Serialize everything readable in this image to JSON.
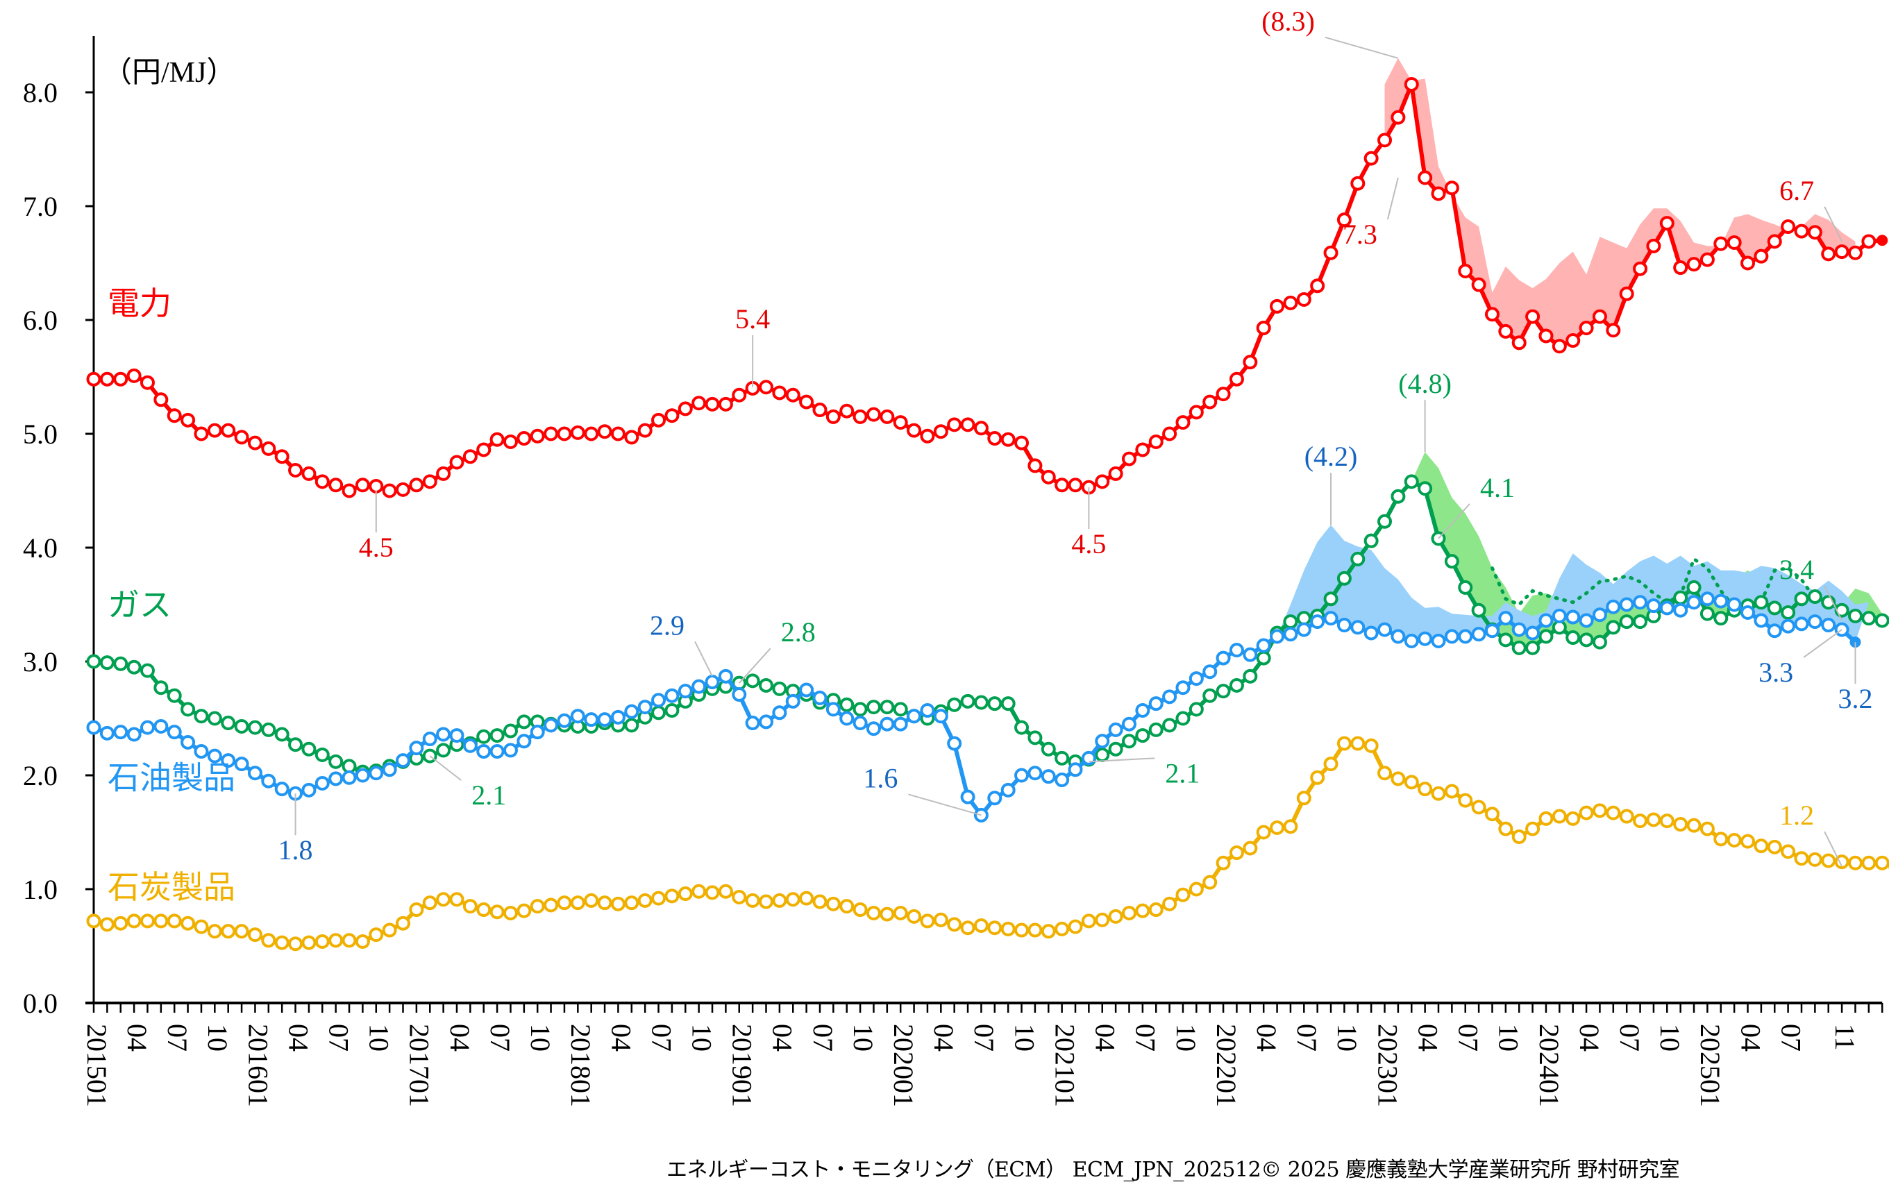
{
  "chart_data": {
    "type": "line",
    "title": "",
    "unit_label": "（円/MJ）",
    "ylabel": "円/MJ",
    "xlabel": "",
    "ylim": [
      0,
      8.5
    ],
    "yticks": [
      0.0,
      1.0,
      2.0,
      3.0,
      4.0,
      5.0,
      6.0,
      7.0,
      8.0
    ],
    "ytick_labels": [
      "0.0",
      "1.0",
      "2.0",
      "3.0",
      "4.0",
      "5.0",
      "6.0",
      "7.0",
      "8.0"
    ],
    "x_start": "201501",
    "x_end": "202512",
    "x_tick_labels": [
      {
        "index": 0,
        "label": "201501"
      },
      {
        "index": 3,
        "label": "04"
      },
      {
        "index": 6,
        "label": "07"
      },
      {
        "index": 9,
        "label": "10"
      },
      {
        "index": 12,
        "label": "201601"
      },
      {
        "index": 15,
        "label": "04"
      },
      {
        "index": 18,
        "label": "07"
      },
      {
        "index": 21,
        "label": "10"
      },
      {
        "index": 24,
        "label": "201701"
      },
      {
        "index": 27,
        "label": "04"
      },
      {
        "index": 30,
        "label": "07"
      },
      {
        "index": 33,
        "label": "10"
      },
      {
        "index": 36,
        "label": "201801"
      },
      {
        "index": 39,
        "label": "04"
      },
      {
        "index": 42,
        "label": "07"
      },
      {
        "index": 45,
        "label": "10"
      },
      {
        "index": 48,
        "label": "201901"
      },
      {
        "index": 51,
        "label": "04"
      },
      {
        "index": 54,
        "label": "07"
      },
      {
        "index": 57,
        "label": "10"
      },
      {
        "index": 60,
        "label": "202001"
      },
      {
        "index": 63,
        "label": "04"
      },
      {
        "index": 66,
        "label": "07"
      },
      {
        "index": 69,
        "label": "10"
      },
      {
        "index": 72,
        "label": "202101"
      },
      {
        "index": 75,
        "label": "04"
      },
      {
        "index": 78,
        "label": "07"
      },
      {
        "index": 81,
        "label": "10"
      },
      {
        "index": 84,
        "label": "202201"
      },
      {
        "index": 87,
        "label": "04"
      },
      {
        "index": 90,
        "label": "07"
      },
      {
        "index": 93,
        "label": "10"
      },
      {
        "index": 96,
        "label": "202301"
      },
      {
        "index": 99,
        "label": "04"
      },
      {
        "index": 102,
        "label": "07"
      },
      {
        "index": 105,
        "label": "10"
      },
      {
        "index": 108,
        "label": "202401"
      },
      {
        "index": 111,
        "label": "04"
      },
      {
        "index": 114,
        "label": "07"
      },
      {
        "index": 117,
        "label": "10"
      },
      {
        "index": 120,
        "label": "202501"
      },
      {
        "index": 123,
        "label": "04"
      },
      {
        "index": 126,
        "label": "07"
      },
      {
        "index": 130,
        "label": "11"
      }
    ],
    "grid": false,
    "legend": "inline-labels-left",
    "series": [
      {
        "name": "電力",
        "color": "#ff0000",
        "band_color": "#ffb3b3",
        "label_anchor": {
          "index": 1,
          "value": 6.05
        },
        "values": [
          5.48,
          5.48,
          5.48,
          5.51,
          5.45,
          5.3,
          5.16,
          5.12,
          5.0,
          5.03,
          5.03,
          4.97,
          4.92,
          4.87,
          4.8,
          4.68,
          4.65,
          4.58,
          4.55,
          4.5,
          4.55,
          4.54,
          4.5,
          4.51,
          4.55,
          4.58,
          4.65,
          4.75,
          4.8,
          4.86,
          4.95,
          4.93,
          4.96,
          4.98,
          5.0,
          5.0,
          5.01,
          5.0,
          5.02,
          5.0,
          4.97,
          5.03,
          5.12,
          5.16,
          5.22,
          5.27,
          5.26,
          5.26,
          5.34,
          5.4,
          5.41,
          5.36,
          5.34,
          5.28,
          5.21,
          5.15,
          5.2,
          5.15,
          5.17,
          5.15,
          5.1,
          5.03,
          4.98,
          5.02,
          5.08,
          5.08,
          5.05,
          4.96,
          4.95,
          4.92,
          4.72,
          4.62,
          4.55,
          4.55,
          4.53,
          4.58,
          4.65,
          4.78,
          4.86,
          4.93,
          5.0,
          5.1,
          5.19,
          5.28,
          5.35,
          5.48,
          5.63,
          5.93,
          6.12,
          6.15,
          6.18,
          6.3,
          6.59,
          6.88,
          7.2,
          7.42,
          7.58,
          7.78,
          8.07,
          7.25,
          7.11,
          7.16,
          6.43,
          6.31,
          6.05,
          5.9,
          5.8,
          6.03,
          5.86,
          5.77,
          5.82,
          5.93,
          6.03,
          5.91,
          6.23,
          6.45,
          6.65,
          6.85,
          6.46,
          6.49,
          6.53,
          6.67,
          6.68,
          6.5,
          6.56,
          6.69,
          6.82,
          6.78,
          6.77,
          6.58,
          6.6,
          6.59,
          6.69,
          6.7
        ],
        "upper_band": {
          "start_index": 96,
          "values": [
            8.07,
            8.3,
            8.1,
            8.12,
            7.35,
            7.1,
            6.9,
            6.82,
            6.24,
            6.47,
            6.35,
            6.28,
            6.36,
            6.5,
            6.6,
            6.4,
            6.73,
            6.68,
            6.63,
            6.84,
            6.98,
            6.98,
            6.87,
            6.68,
            6.65,
            6.65,
            6.9,
            6.93,
            6.88,
            6.84,
            6.79,
            6.82,
            6.93,
            6.88,
            6.77,
            6.69
          ]
        }
      },
      {
        "name": "ガス",
        "color": "#00a050",
        "band_color": "#8ee68a",
        "label_anchor": {
          "index": 1,
          "value": 3.4
        },
        "values": [
          3.0,
          2.99,
          2.98,
          2.95,
          2.92,
          2.77,
          2.7,
          2.58,
          2.52,
          2.5,
          2.46,
          2.43,
          2.42,
          2.4,
          2.36,
          2.27,
          2.23,
          2.18,
          2.12,
          2.08,
          2.03,
          2.04,
          2.08,
          2.12,
          2.15,
          2.17,
          2.22,
          2.27,
          2.28,
          2.34,
          2.35,
          2.39,
          2.47,
          2.47,
          2.45,
          2.44,
          2.43,
          2.43,
          2.46,
          2.44,
          2.44,
          2.51,
          2.55,
          2.57,
          2.65,
          2.71,
          2.76,
          2.78,
          2.81,
          2.83,
          2.79,
          2.76,
          2.74,
          2.71,
          2.64,
          2.66,
          2.62,
          2.58,
          2.6,
          2.6,
          2.58,
          2.52,
          2.5,
          2.56,
          2.62,
          2.65,
          2.64,
          2.63,
          2.63,
          2.42,
          2.33,
          2.23,
          2.15,
          2.12,
          2.14,
          2.18,
          2.23,
          2.3,
          2.35,
          2.4,
          2.44,
          2.5,
          2.58,
          2.7,
          2.74,
          2.79,
          2.87,
          3.03,
          3.25,
          3.35,
          3.38,
          3.4,
          3.55,
          3.73,
          3.9,
          4.06,
          4.23,
          4.45,
          4.58,
          4.52,
          4.08,
          3.88,
          3.65,
          3.45,
          3.28,
          3.19,
          3.12,
          3.12,
          3.22,
          3.3,
          3.21,
          3.19,
          3.17,
          3.3,
          3.35,
          3.35,
          3.4,
          3.49,
          3.56,
          3.65,
          3.42,
          3.38,
          3.45,
          3.49,
          3.52,
          3.47,
          3.43,
          3.55,
          3.57,
          3.52,
          3.45,
          3.4,
          3.38,
          3.36,
          3.37
        ],
        "upper_band": {
          "start_index": 98,
          "values": [
            4.58,
            4.84,
            4.7,
            4.44,
            4.3,
            4.1,
            3.82,
            3.65,
            3.42,
            3.58,
            3.6,
            3.55,
            3.57,
            3.57,
            3.61,
            3.68,
            3.72,
            3.71,
            3.65,
            3.58,
            3.76,
            3.74,
            3.6,
            3.73,
            3.72,
            3.8,
            3.72,
            3.6,
            3.58,
            3.52,
            3.52,
            3.45,
            3.5,
            3.64,
            3.6,
            3.42,
            3.37
          ]
        },
        "dotted_segment": {
          "start_index": 104,
          "values": [
            3.82,
            3.55,
            3.5,
            3.62,
            3.58,
            3.55,
            3.52,
            3.6,
            3.7,
            3.72,
            3.75,
            3.7,
            3.6,
            3.52,
            3.58,
            3.9,
            3.82,
            3.62,
            3.48,
            3.45,
            3.52,
            3.8,
            3.82,
            3.72,
            3.55,
            3.5
          ]
        }
      },
      {
        "name": "石油製品",
        "color": "#2196f3",
        "band_color": "#99d1fb",
        "label_anchor": {
          "index": 1,
          "value": 1.88
        },
        "values": [
          2.42,
          2.37,
          2.38,
          2.36,
          2.42,
          2.43,
          2.38,
          2.29,
          2.21,
          2.17,
          2.13,
          2.1,
          2.02,
          1.95,
          1.88,
          1.84,
          1.87,
          1.93,
          1.97,
          1.98,
          2.0,
          2.02,
          2.05,
          2.13,
          2.24,
          2.32,
          2.36,
          2.35,
          2.26,
          2.21,
          2.21,
          2.22,
          2.3,
          2.38,
          2.44,
          2.48,
          2.52,
          2.49,
          2.49,
          2.51,
          2.56,
          2.6,
          2.66,
          2.7,
          2.74,
          2.78,
          2.82,
          2.87,
          2.71,
          2.46,
          2.47,
          2.55,
          2.65,
          2.75,
          2.68,
          2.58,
          2.5,
          2.46,
          2.41,
          2.45,
          2.45,
          2.52,
          2.57,
          2.52,
          2.28,
          1.81,
          1.65,
          1.8,
          1.87,
          2.0,
          2.02,
          1.99,
          1.96,
          2.05,
          2.15,
          2.3,
          2.4,
          2.45,
          2.57,
          2.63,
          2.69,
          2.77,
          2.85,
          2.91,
          3.03,
          3.1,
          3.06,
          3.14,
          3.22,
          3.24,
          3.28,
          3.35,
          3.38,
          3.32,
          3.3,
          3.25,
          3.28,
          3.22,
          3.18,
          3.2,
          3.18,
          3.22,
          3.22,
          3.24,
          3.27,
          3.38,
          3.28,
          3.25,
          3.36,
          3.4,
          3.39,
          3.36,
          3.41,
          3.48,
          3.5,
          3.52,
          3.49,
          3.47,
          3.45,
          3.52,
          3.55,
          3.53,
          3.5,
          3.43,
          3.36,
          3.27,
          3.31,
          3.33,
          3.35,
          3.32,
          3.28,
          3.17
        ],
        "upper_band": {
          "start_index": 84,
          "values": [
            3.03,
            3.1,
            3.06,
            3.14,
            3.22,
            3.5,
            3.8,
            4.05,
            4.2,
            4.06,
            4.01,
            3.98,
            3.82,
            3.72,
            3.56,
            3.47,
            3.48,
            3.42,
            3.41,
            3.4,
            3.4,
            3.52,
            3.45,
            3.4,
            3.44,
            3.73,
            3.95,
            3.85,
            3.78,
            3.68,
            3.79,
            3.88,
            3.93,
            3.86,
            3.93,
            3.84,
            3.88,
            3.8,
            3.8,
            3.78,
            3.84,
            3.82,
            3.76,
            3.68,
            3.62,
            3.71,
            3.62,
            3.5,
            3.52,
            3.52,
            3.5,
            3.5
          ]
        }
      },
      {
        "name": "石炭製品",
        "color": "#f0b000",
        "band_color": "",
        "label_anchor": {
          "index": 1,
          "value": 0.92
        },
        "values": [
          0.72,
          0.69,
          0.7,
          0.72,
          0.72,
          0.72,
          0.72,
          0.7,
          0.67,
          0.63,
          0.63,
          0.63,
          0.6,
          0.55,
          0.53,
          0.52,
          0.53,
          0.54,
          0.55,
          0.55,
          0.54,
          0.6,
          0.64,
          0.7,
          0.82,
          0.88,
          0.91,
          0.91,
          0.85,
          0.82,
          0.8,
          0.79,
          0.81,
          0.85,
          0.86,
          0.88,
          0.88,
          0.9,
          0.88,
          0.87,
          0.88,
          0.9,
          0.92,
          0.94,
          0.96,
          0.98,
          0.97,
          0.98,
          0.93,
          0.9,
          0.89,
          0.9,
          0.91,
          0.92,
          0.89,
          0.87,
          0.85,
          0.82,
          0.79,
          0.78,
          0.79,
          0.76,
          0.72,
          0.73,
          0.69,
          0.66,
          0.68,
          0.66,
          0.65,
          0.64,
          0.64,
          0.63,
          0.65,
          0.67,
          0.72,
          0.73,
          0.76,
          0.79,
          0.81,
          0.82,
          0.87,
          0.95,
          1.0,
          1.06,
          1.23,
          1.32,
          1.36,
          1.5,
          1.54,
          1.55,
          1.8,
          1.98,
          2.1,
          2.28,
          2.28,
          2.26,
          2.02,
          1.97,
          1.94,
          1.88,
          1.84,
          1.86,
          1.78,
          1.72,
          1.66,
          1.53,
          1.46,
          1.53,
          1.62,
          1.64,
          1.62,
          1.67,
          1.69,
          1.67,
          1.64,
          1.6,
          1.61,
          1.6,
          1.57,
          1.56,
          1.53,
          1.44,
          1.43,
          1.42,
          1.38,
          1.37,
          1.33,
          1.27,
          1.26,
          1.25,
          1.24,
          1.23,
          1.23,
          1.23,
          1.2,
          1.21
        ]
      }
    ],
    "annotations": [
      {
        "series": "電力",
        "text": "4.5",
        "index": 21,
        "value": 4.5,
        "pos": "below"
      },
      {
        "series": "電力",
        "text": "5.4",
        "index": 49,
        "value": 5.41,
        "pos": "above"
      },
      {
        "series": "電力",
        "text": "4.5",
        "index": 74,
        "value": 4.53,
        "pos": "below"
      },
      {
        "series": "電力",
        "text": "(8.3)",
        "index": 97,
        "value": 8.3,
        "pos": "left"
      },
      {
        "series": "電力",
        "text": "7.3",
        "index": 97,
        "value": 7.25,
        "pos": "below-left"
      },
      {
        "series": "電力",
        "text": "6.7",
        "index": 130,
        "value": 6.69,
        "pos": "upper-left"
      },
      {
        "series": "ガス",
        "text": "2.1",
        "index": 25,
        "value": 2.17,
        "pos": "below-right"
      },
      {
        "series": "ガス",
        "text": "2.8",
        "index": 48,
        "value": 2.81,
        "pos": "upper-right"
      },
      {
        "series": "ガス",
        "text": "2.1",
        "index": 74,
        "value": 2.12,
        "pos": "right"
      },
      {
        "series": "ガス",
        "text": "(4.8)",
        "index": 99,
        "value": 4.84,
        "pos": "above"
      },
      {
        "series": "ガス",
        "text": "4.1",
        "index": 100,
        "value": 4.08,
        "pos": "upper-right"
      },
      {
        "series": "ガス",
        "text": "3.4",
        "index": 130,
        "value": 3.36,
        "pos": "upper-left"
      },
      {
        "series": "石油製品",
        "text": "1.8",
        "index": 15,
        "value": 1.84,
        "pos": "below"
      },
      {
        "series": "石油製品",
        "text": "2.9",
        "index": 46,
        "value": 2.87,
        "pos": "upper-left"
      },
      {
        "series": "石油製品",
        "text": "1.6",
        "index": 66,
        "value": 1.65,
        "pos": "left"
      },
      {
        "series": "石油製品",
        "text": "(4.2)",
        "index": 92,
        "value": 4.2,
        "pos": "above"
      },
      {
        "series": "石油製品",
        "text": "3.3",
        "index": 130,
        "value": 3.28,
        "pos": "lower-left"
      },
      {
        "series": "石油製品",
        "text": "3.2",
        "index": 131,
        "value": 3.17,
        "pos": "below"
      },
      {
        "series": "石炭製品",
        "text": "1.2",
        "index": 130,
        "value": 1.2,
        "pos": "upper-left"
      }
    ],
    "footer": "エネルギーコスト・モニタリング（ECM） ECM_JPN_202512© 2025 慶應義塾大学産業研究所 野村研究室"
  }
}
